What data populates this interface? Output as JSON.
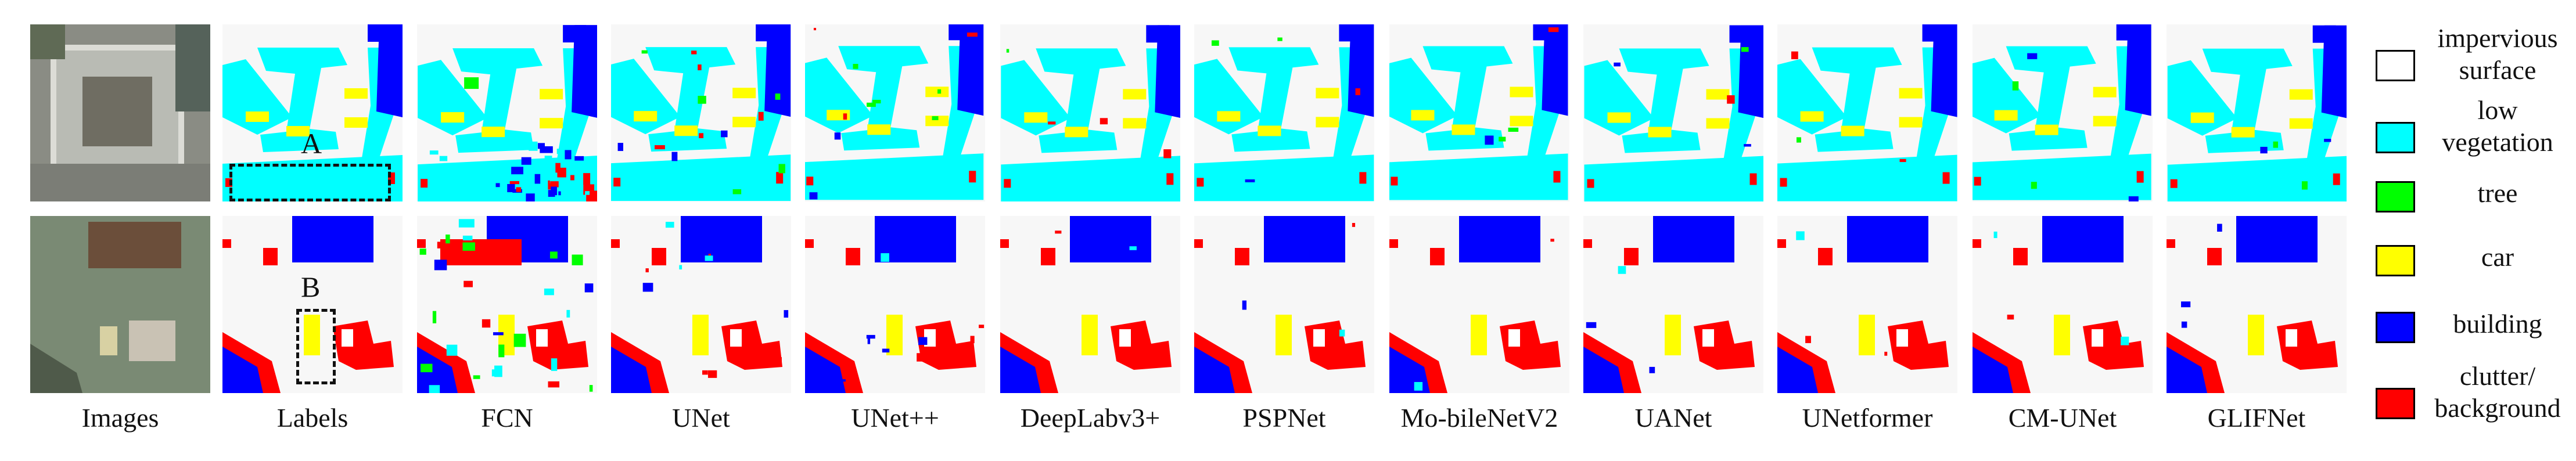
{
  "column_labels": [
    "Images",
    "Labels",
    "FCN",
    "UNet",
    "UNet++",
    "DeepLabv3+",
    "PSPNet",
    "Mo-bileNetV2",
    "UANet",
    "UNetformer",
    "CM-UNet",
    "GLIFNet"
  ],
  "region_markers": [
    "A",
    "B"
  ],
  "legend": [
    {
      "line1": "impervious",
      "line2": "surface",
      "color": "#ffffff",
      "icon": "impervious-surface-swatch"
    },
    {
      "line1": "low",
      "line2": "vegetation",
      "color": "#00ffff",
      "icon": "low-vegetation-swatch"
    },
    {
      "line1": "tree",
      "line2": "",
      "color": "#00ff00",
      "icon": "tree-swatch"
    },
    {
      "line1": "car",
      "line2": "",
      "color": "#ffff00",
      "icon": "car-swatch"
    },
    {
      "line1": "building",
      "line2": "",
      "color": "#0000ff",
      "icon": "building-swatch"
    },
    {
      "line1": "clutter/",
      "line2": "background",
      "color": "#ff0000",
      "icon": "clutter-background-swatch"
    }
  ],
  "colors": {
    "impervious": "#ffffff",
    "lowveg": "#00ffff",
    "tree": "#00ff00",
    "car": "#ffff00",
    "building": "#0000ff",
    "clutter": "#ff0000"
  }
}
